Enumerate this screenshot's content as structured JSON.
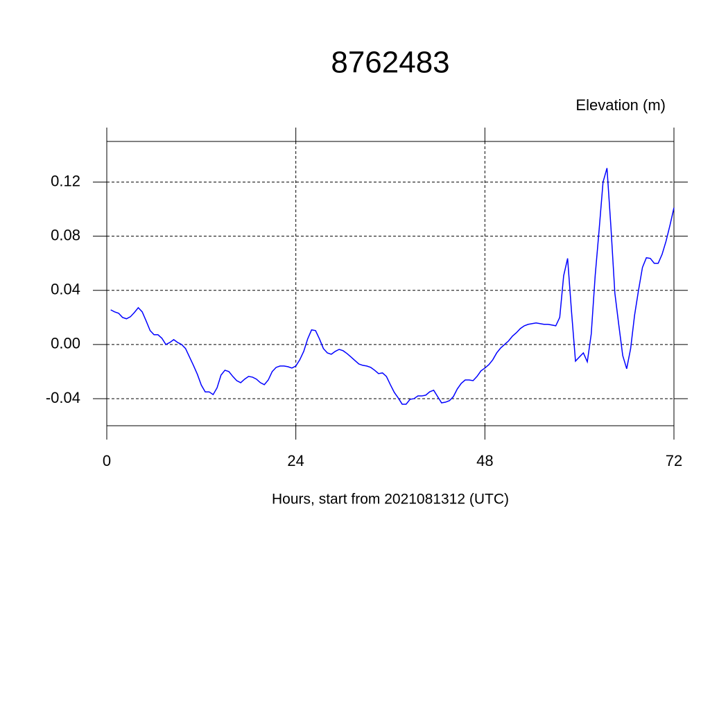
{
  "chart_data": {
    "type": "line",
    "title": "8762483",
    "ylabel": "Elevation (m)",
    "xlabel": "Hours, start from 2021081312 (UTC)",
    "x": [
      0.5,
      1,
      1.5,
      2,
      2.5,
      3,
      3.5,
      4,
      4.5,
      5,
      5.5,
      6,
      6.5,
      7,
      7.5,
      8,
      8.5,
      9,
      9.5,
      10,
      10.5,
      11,
      11.5,
      12,
      12.5,
      13,
      13.5,
      14,
      14.5,
      15,
      15.5,
      16,
      16.5,
      17,
      17.5,
      18,
      18.5,
      19,
      19.5,
      20,
      20.5,
      21,
      21.5,
      22,
      22.5,
      23,
      23.5,
      24,
      24.5,
      25,
      25.5,
      26,
      26.5,
      27,
      27.5,
      28,
      28.5,
      29,
      29.5,
      30,
      30.5,
      31,
      31.5,
      32,
      32.5,
      33,
      33.5,
      34,
      34.5,
      35,
      35.5,
      36,
      36.5,
      37,
      37.5,
      38,
      38.5,
      39,
      39.5,
      40,
      40.5,
      41,
      41.5,
      42,
      42.5,
      43,
      43.5,
      44,
      44.5,
      45,
      45.5,
      46,
      46.5,
      47,
      47.5,
      48,
      48.5,
      49,
      49.5,
      50,
      50.5,
      51,
      51.5,
      52,
      52.5,
      53,
      53.5,
      54,
      54.5,
      55,
      55.5,
      56,
      56.5,
      57,
      57.5,
      58,
      58.5,
      59,
      59.5,
      60,
      60.5,
      61,
      61.5,
      62,
      62.5,
      63,
      63.5,
      64,
      64.5,
      65,
      65.5,
      66,
      66.5,
      67,
      67.5,
      68,
      68.5,
      69,
      69.5,
      70,
      70.5,
      71,
      71.5,
      72
    ],
    "series": [
      {
        "color": "#0000ff",
        "values": [
          0.0256,
          0.0241,
          0.0231,
          0.02,
          0.019,
          0.0205,
          0.0236,
          0.0272,
          0.0241,
          0.0174,
          0.0103,
          0.0072,
          0.0072,
          0.0046,
          0.0,
          0.0015,
          0.0036,
          0.0015,
          0.0,
          -0.003,
          -0.0092,
          -0.0154,
          -0.022,
          -0.03,
          -0.035,
          -0.035,
          -0.037,
          -0.032,
          -0.0226,
          -0.019,
          -0.02,
          -0.0236,
          -0.0267,
          -0.0282,
          -0.0256,
          -0.0236,
          -0.0241,
          -0.0256,
          -0.0282,
          -0.0297,
          -0.0262,
          -0.02,
          -0.0169,
          -0.0159,
          -0.0159,
          -0.0164,
          -0.0174,
          -0.0159,
          -0.0113,
          -0.0051,
          0.0041,
          0.0108,
          0.0103,
          0.0041,
          -0.003,
          -0.0062,
          -0.0072,
          -0.0051,
          -0.0036,
          -0.0046,
          -0.0067,
          -0.0092,
          -0.0118,
          -0.0144,
          -0.0154,
          -0.0159,
          -0.0169,
          -0.019,
          -0.0215,
          -0.021,
          -0.0236,
          -0.0297,
          -0.0354,
          -0.0395,
          -0.0441,
          -0.0441,
          -0.0405,
          -0.04,
          -0.038,
          -0.038,
          -0.0374,
          -0.0349,
          -0.0338,
          -0.0385,
          -0.0431,
          -0.0426,
          -0.0415,
          -0.0385,
          -0.0328,
          -0.0287,
          -0.0262,
          -0.0262,
          -0.0267,
          -0.0236,
          -0.0195,
          -0.0174,
          -0.0149,
          -0.0113,
          -0.0062,
          -0.0026,
          0.0,
          0.0026,
          0.0062,
          0.0087,
          0.0118,
          0.0138,
          0.0149,
          0.0154,
          0.0159,
          0.0154,
          0.0149,
          0.0149,
          0.0144,
          0.0138,
          0.02,
          0.0508,
          0.0636,
          0.0241,
          -0.0123,
          -0.0092,
          -0.0062,
          -0.0128,
          0.0077,
          0.0508,
          0.0846,
          0.12,
          0.1303,
          0.0867,
          0.0379,
          0.0144,
          -0.0082,
          -0.0179,
          -0.0031,
          0.0215,
          0.04,
          0.0569,
          0.0641,
          0.0636,
          0.06,
          0.06,
          0.0667,
          0.0764,
          0.0882,
          0.101
        ]
      }
    ],
    "xlim": [
      0,
      72
    ],
    "xticks": [
      0,
      24,
      48,
      72
    ],
    "ylim": [
      -0.06,
      0.15
    ],
    "yticks": [
      -0.04,
      {
        "value": 0,
        "label": "0.00"
      },
      0.04,
      0.08,
      0.12
    ],
    "grid": true
  }
}
